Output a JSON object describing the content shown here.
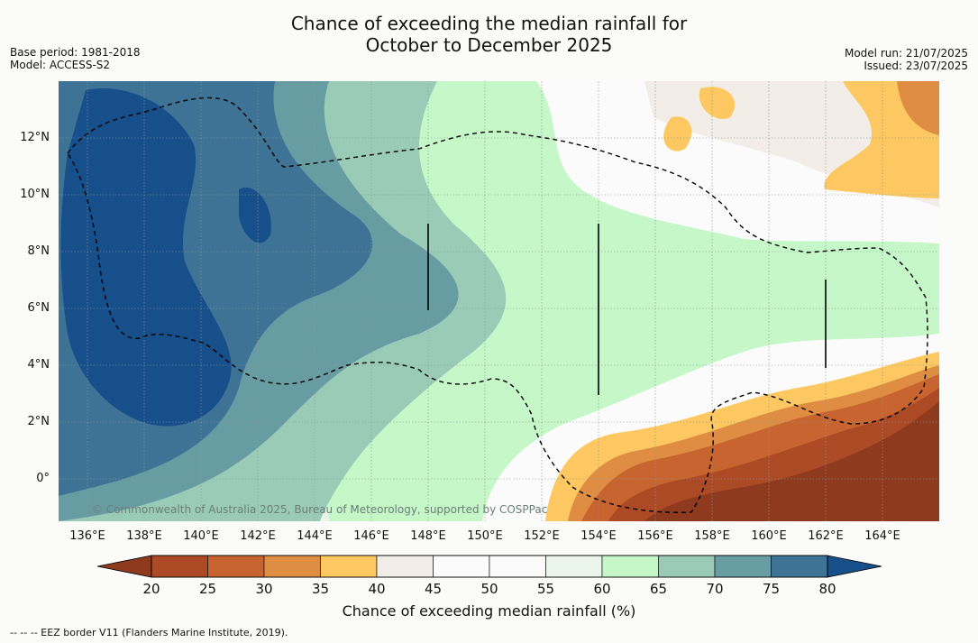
{
  "title": {
    "line1": "Chance of exceeding the median rainfall for",
    "line2": "October to December 2025"
  },
  "meta_left": {
    "base_period": "Base period: 1981-2018",
    "model": "Model: ACCESS-S2"
  },
  "meta_right": {
    "model_run": "Model run: 21/07/2025",
    "issued": "Issued: 23/07/2025"
  },
  "map": {
    "lat_labels": [
      "12°N",
      "10°N",
      "8°N",
      "6°N",
      "4°N",
      "2°N",
      "0°"
    ],
    "lon_labels": [
      "136°E",
      "138°E",
      "140°E",
      "142°E",
      "144°E",
      "146°E",
      "148°E",
      "150°E",
      "152°E",
      "154°E",
      "156°E",
      "158°E",
      "160°E",
      "162°E",
      "164°E"
    ],
    "copyright": "© Commonwealth of Australia 2025, Bureau of Meteorology, supported by COSPPac"
  },
  "colorbar": {
    "ticks": [
      "20",
      "25",
      "30",
      "35",
      "40",
      "45",
      "50",
      "55",
      "60",
      "65",
      "70",
      "75",
      "80"
    ],
    "colors": [
      "#8e3a1f",
      "#ad4a26",
      "#c8642f",
      "#de8d42",
      "#fdc861",
      "#f2ede6",
      "#fbfbfb",
      "#fbfbfb",
      "#eaf6ea",
      "#c5f7c8",
      "#9acbb6",
      "#689ca3",
      "#3e7396",
      "#164f8a"
    ],
    "title": "Chance of exceeding median rainfall (%)"
  },
  "footer": "--  --  -- EEZ border V11 (Flanders Marine Institute, 2019)."
}
